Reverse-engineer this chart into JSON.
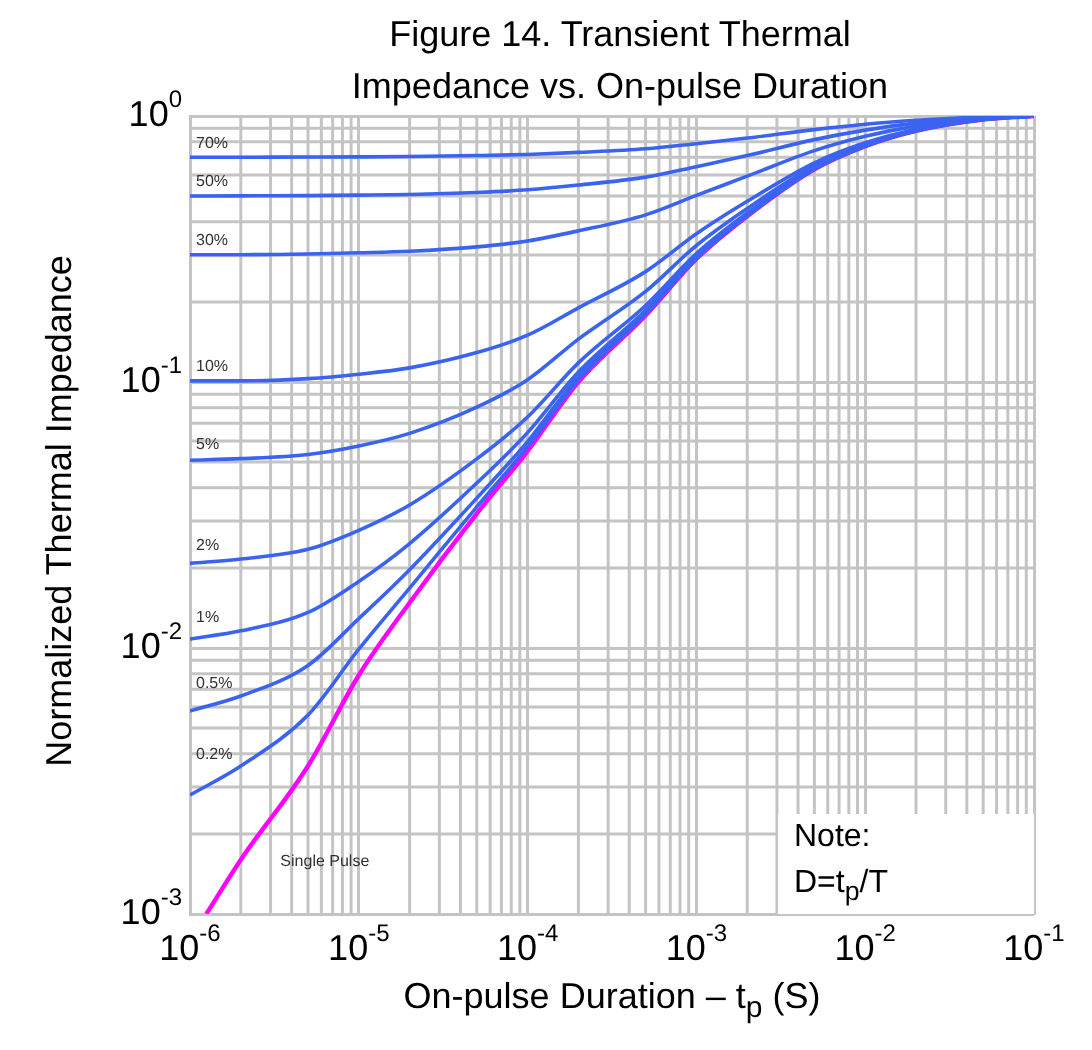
{
  "chart_data": {
    "type": "line",
    "title": "Figure 14. Transient Thermal Impedance vs. On-pulse Duration",
    "xlabel": "On-pulse Duration – t$_{p}$ (S)",
    "ylabel": "Normalized Thermal Impedance",
    "log": "xy",
    "grid": true,
    "legend": false,
    "marker": "none",
    "line_style": "solid",
    "xlim": [
      1e-06,
      0.1
    ],
    "ylim": [
      0.001,
      1
    ],
    "xticks": [
      {
        "value": 1e-06,
        "label": "10$^{-6}$"
      },
      {
        "value": 1e-05,
        "label": "10$^{-5}$"
      },
      {
        "value": 0.0001,
        "label": "10$^{-4}$"
      },
      {
        "value": 0.001,
        "label": "10$^{-3}$"
      },
      {
        "value": 0.01,
        "label": "10$^{-2}$"
      },
      {
        "value": 0.1,
        "label": "10$^{-1}$"
      }
    ],
    "yticks": [
      {
        "value": 0.001,
        "label": "10$^{-3}$"
      },
      {
        "value": 0.01,
        "label": "10$^{-2}$"
      },
      {
        "value": 0.1,
        "label": "10$^{-1}$"
      },
      {
        "value": 1,
        "label": "10$^{0}$"
      }
    ],
    "x": [
      1e-06,
      2e-06,
      5e-06,
      1e-05,
      2e-05,
      5e-05,
      0.0001,
      0.0002,
      0.0005,
      0.001,
      0.002,
      0.005,
      0.01,
      0.02,
      0.05,
      0.1
    ],
    "series": [
      {
        "name": "70%",
        "color": "#3b63f2",
        "values": [
          0.7,
          0.7,
          0.701,
          0.702,
          0.704,
          0.71,
          0.717,
          0.73,
          0.753,
          0.787,
          0.826,
          0.889,
          0.931,
          0.964,
          0.991,
          1
        ]
      },
      {
        "name": "50%",
        "color": "#3b63f2",
        "values": [
          0.5,
          0.501,
          0.502,
          0.504,
          0.507,
          0.516,
          0.528,
          0.55,
          0.589,
          0.645,
          0.71,
          0.815,
          0.885,
          0.94,
          0.985,
          1
        ]
      },
      {
        "name": "30%",
        "color": "#3b63f2",
        "values": [
          0.301,
          0.301,
          0.303,
          0.306,
          0.31,
          0.322,
          0.339,
          0.37,
          0.425,
          0.503,
          0.594,
          0.741,
          0.839,
          0.916,
          0.979,
          1
        ]
      },
      {
        "name": "10%",
        "color": "#3b63f2",
        "values": [
          0.101,
          0.101,
          0.103,
          0.107,
          0.113,
          0.129,
          0.15,
          0.19,
          0.26,
          0.361,
          0.478,
          0.667,
          0.793,
          0.892,
          0.973,
          1
        ]
      },
      {
        "name": "5%",
        "color": "#3b63f2",
        "values": [
          0.0508,
          0.0515,
          0.0534,
          0.0575,
          0.0641,
          0.0804,
          0.102,
          0.145,
          0.219,
          0.326,
          0.449,
          0.649,
          0.782,
          0.886,
          0.972,
          1
        ]
      },
      {
        "name": "2%",
        "color": "#3b63f2",
        "values": [
          0.0208,
          0.0216,
          0.0235,
          0.0277,
          0.0345,
          0.0514,
          0.0739,
          0.118,
          0.194,
          0.304,
          0.432,
          0.637,
          0.775,
          0.882,
          0.971,
          1
        ]
      },
      {
        "name": "1%",
        "color": "#3b63f2",
        "values": [
          0.0108,
          0.0116,
          0.0136,
          0.0178,
          0.0247,
          0.0417,
          0.0645,
          0.109,
          0.186,
          0.297,
          0.426,
          0.634,
          0.772,
          0.881,
          0.97,
          1
        ]
      },
      {
        "name": "0.5%",
        "color": "#3b63f2",
        "values": [
          0.0058,
          0.0066,
          0.0086,
          0.0129,
          0.0197,
          0.0366,
          0.0597,
          0.105,
          0.182,
          0.294,
          0.423,
          0.632,
          0.771,
          0.88,
          0.97,
          1
        ]
      },
      {
        "name": "0.2%",
        "color": "#3b63f2",
        "values": [
          0.0028,
          0.0036,
          0.0056,
          0.0099,
          0.0168,
          0.0339,
          0.0571,
          0.102,
          0.18,
          0.291,
          0.421,
          0.631,
          0.77,
          0.88,
          0.97,
          1
        ]
      },
      {
        "name": "Single Pulse",
        "color": "#ff00ff",
        "x": [
          1.25e-06,
          2e-06,
          5e-06,
          1e-05,
          2e-05,
          5e-05,
          0.0001,
          0.0002,
          0.0005,
          0.001,
          0.002,
          0.005,
          0.01,
          0.02,
          0.05,
          0.1
        ],
        "values": [
          0.001,
          0.0016,
          0.0036,
          0.0079,
          0.0148,
          0.032,
          0.055,
          0.1,
          0.178,
          0.29,
          0.42,
          0.63,
          0.77,
          0.88,
          0.97,
          1
        ]
      }
    ],
    "annotations": [
      "Note:",
      "D=t$_{p}$/T"
    ]
  }
}
